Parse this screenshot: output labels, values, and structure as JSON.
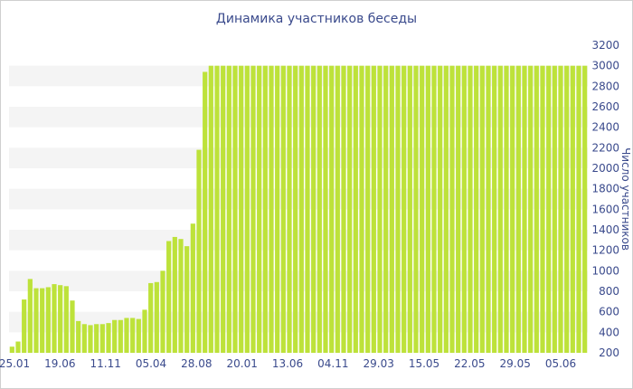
{
  "colors": {
    "bar": "#bde23a",
    "band": "#f4f4f4",
    "axis_text": "#3a4a8c",
    "border": "#cfcfcf"
  },
  "chart_data": {
    "type": "bar",
    "title": "Динамика участников беседы",
    "xlabel": "",
    "ylabel": "Число участников",
    "ylim": [
      200,
      3200
    ],
    "yticks": [
      200,
      400,
      600,
      800,
      1000,
      1200,
      1400,
      1600,
      1800,
      2000,
      2200,
      2400,
      2600,
      2800,
      3000,
      3200
    ],
    "x_tick_labels": [
      "25.01",
      "19.06",
      "11.11",
      "05.04",
      "28.08",
      "20.01",
      "13.06",
      "04.11",
      "29.03",
      "15.05",
      "22.05",
      "29.05",
      "05.06"
    ],
    "grid": "alternating horizontal bands",
    "values": [
      260,
      310,
      720,
      920,
      830,
      830,
      840,
      870,
      860,
      850,
      710,
      510,
      480,
      470,
      480,
      480,
      490,
      520,
      520,
      540,
      540,
      530,
      620,
      880,
      890,
      1000,
      1290,
      1330,
      1310,
      1240,
      1460,
      2180,
      2940,
      3000,
      3000,
      3000,
      3000,
      3000,
      3000,
      3000,
      3000,
      3000,
      3000,
      3000,
      3000,
      3000,
      3000,
      3000,
      3000,
      3000,
      3000,
      3000,
      3000,
      3000,
      3000,
      3000,
      3000,
      3000,
      3000,
      3000,
      3000,
      3000,
      3000,
      3000,
      3000,
      3000,
      3000,
      3000,
      3000,
      3000,
      3000,
      3000,
      3000,
      3000,
      3000,
      3000,
      3000,
      3000,
      3000,
      3000,
      3000,
      3000,
      3000,
      3000,
      3000,
      3000,
      3000,
      3000,
      3000,
      3000,
      3000,
      3000,
      3000,
      3000,
      3000,
      3000
    ]
  }
}
